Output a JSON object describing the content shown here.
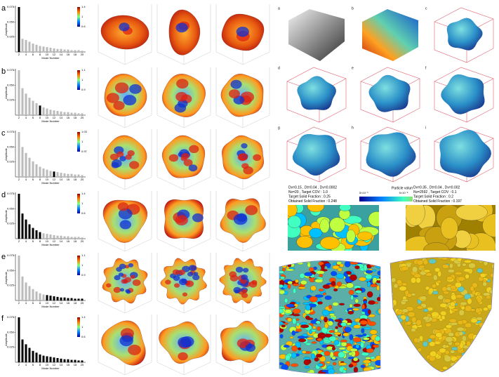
{
  "panels": [
    {
      "label": "a",
      "y_axis_label": "Amplitude",
      "x_axis_label": "Mode Number",
      "modes": [
        2,
        3,
        4,
        5,
        6,
        7,
        8,
        9,
        10,
        11,
        12,
        13,
        14,
        15,
        16,
        17,
        18,
        19,
        20
      ],
      "amplitudes": [
        0.075,
        0.022,
        0.02,
        0.017,
        0.014,
        0.012,
        0.01,
        0.009,
        0.008,
        0.007,
        0.006,
        0.005,
        0.005,
        0.004,
        0.004,
        0.003,
        0.003,
        0.003,
        0.002
      ],
      "black_modes": [
        2
      ],
      "xlim": [
        1,
        21
      ],
      "ylim": [
        0,
        0.075
      ],
      "yticks": [
        {
          "value": 0.025,
          "label": "0.025"
        },
        {
          "value": 0.05,
          "label": "0.050"
        },
        0.075
      ],
      "xticks": [
        2,
        4,
        6,
        8,
        10,
        12,
        14,
        16,
        18,
        20
      ],
      "colorbar_ticks": [
        1.4,
        1,
        0.6
      ]
    },
    {
      "label": "b",
      "y_axis_label": "Amplitude",
      "x_axis_label": "Mode Number",
      "modes": [
        2,
        3,
        4,
        5,
        6,
        7,
        8,
        9,
        10,
        11,
        12,
        13,
        14,
        15,
        16,
        17,
        18,
        19,
        20
      ],
      "amplitudes": [
        0.075,
        0.045,
        0.036,
        0.029,
        0.024,
        0.02,
        0.016,
        0.013,
        0.011,
        0.009,
        0.008,
        0.007,
        0.006,
        0.005,
        0.005,
        0.004,
        0.004,
        0.003,
        0.003
      ],
      "black_modes": [
        8
      ],
      "xlim": [
        1,
        21
      ],
      "ylim": [
        0,
        0.075
      ],
      "yticks": [
        {
          "value": 0.025,
          "label": "0.025"
        },
        {
          "value": 0.05,
          "label": "0.050"
        },
        0.075
      ],
      "xticks": [
        2,
        4,
        6,
        8,
        10,
        12,
        14,
        16,
        18,
        20
      ],
      "colorbar_ticks": [
        1.1,
        1,
        0.9
      ]
    },
    {
      "label": "c",
      "y_axis_label": "Amplitude",
      "x_axis_label": "Mode Number",
      "modes": [
        2,
        3,
        4,
        5,
        6,
        7,
        8,
        9,
        10,
        11,
        12,
        13,
        14,
        15,
        16,
        17,
        18,
        19,
        20
      ],
      "amplitudes": [
        0.075,
        0.05,
        0.04,
        0.032,
        0.026,
        0.021,
        0.017,
        0.014,
        0.012,
        0.01,
        0.009,
        0.008,
        0.007,
        0.006,
        0.005,
        0.005,
        0.004,
        0.004,
        0.003
      ],
      "black_modes": [
        12
      ],
      "xlim": [
        1,
        21
      ],
      "ylim": [
        0,
        0.075
      ],
      "yticks": [
        {
          "value": 0.025,
          "label": "0.025"
        },
        {
          "value": 0.05,
          "label": "0.050"
        },
        0.075
      ],
      "xticks": [
        2,
        4,
        6,
        8,
        10,
        12,
        14,
        16,
        18,
        20
      ],
      "colorbar_ticks": [
        1.03,
        1,
        0.97
      ]
    },
    {
      "label": "d",
      "y_axis_label": "Amplitude",
      "x_axis_label": "Mode Number",
      "modes": [
        2,
        3,
        4,
        5,
        6,
        7,
        8,
        9,
        10,
        11,
        12,
        13,
        14,
        15,
        16,
        17,
        18,
        19,
        20
      ],
      "amplitudes": [
        0.075,
        0.042,
        0.032,
        0.024,
        0.018,
        0.014,
        0.011,
        0.009,
        0.008,
        0.007,
        0.006,
        0.005,
        0.005,
        0.004,
        0.004,
        0.003,
        0.003,
        0.003,
        0.002
      ],
      "black_modes": [
        2,
        3,
        4,
        5,
        6,
        7,
        8
      ],
      "xlim": [
        1,
        21
      ],
      "ylim": [
        0,
        0.075
      ],
      "yticks": [
        {
          "value": 0.025,
          "label": "0.025"
        },
        {
          "value": 0.05,
          "label": "0.050"
        },
        0.075
      ],
      "xticks": [
        2,
        4,
        6,
        8,
        10,
        12,
        14,
        16,
        18,
        20
      ],
      "colorbar_ticks": [
        1.4,
        1,
        0.6
      ]
    },
    {
      "label": "e",
      "y_axis_label": "Amplitude",
      "x_axis_label": "Mode Number",
      "modes": [
        2,
        3,
        4,
        5,
        6,
        7,
        8,
        9,
        10,
        11,
        12,
        13,
        14,
        15,
        16,
        17,
        18,
        19,
        20
      ],
      "amplitudes": [
        0.075,
        0.04,
        0.03,
        0.024,
        0.019,
        0.015,
        0.012,
        0.01,
        0.009,
        0.008,
        0.007,
        0.006,
        0.005,
        0.005,
        0.004,
        0.004,
        0.003,
        0.003,
        0.003
      ],
      "black_modes": [
        10,
        11,
        12,
        13,
        14,
        15,
        16,
        17,
        18,
        19,
        20
      ],
      "xlim": [
        1,
        21
      ],
      "ylim": [
        0,
        0.075
      ],
      "yticks": [
        {
          "value": 0.025,
          "label": "0.025"
        },
        {
          "value": 0.05,
          "label": "0.050"
        },
        0.075
      ],
      "xticks": [
        2,
        4,
        6,
        8,
        10,
        12,
        14,
        16,
        18,
        20
      ],
      "colorbar_ticks": [
        1.1,
        1,
        0.9
      ]
    },
    {
      "label": "f",
      "y_axis_label": "Amplitude",
      "x_axis_label": "Mode Number",
      "modes": [
        2,
        3,
        4,
        5,
        6,
        7,
        8,
        9,
        10,
        11,
        12,
        13,
        14,
        15,
        16,
        17,
        18,
        19,
        20
      ],
      "amplitudes": [
        0.075,
        0.038,
        0.03,
        0.024,
        0.019,
        0.016,
        0.013,
        0.011,
        0.01,
        0.009,
        0.008,
        0.007,
        0.006,
        0.005,
        0.005,
        0.004,
        0.004,
        0.003,
        0.003
      ],
      "black_modes": [
        2,
        3,
        4,
        5,
        6,
        7,
        8,
        9,
        10,
        11,
        12,
        13,
        14,
        15,
        16,
        17,
        18,
        19,
        20
      ],
      "xlim": [
        1,
        21
      ],
      "ylim": [
        0,
        0.075
      ],
      "yticks": [
        {
          "value": 0.025,
          "label": "0.025"
        },
        {
          "value": 0.05,
          "label": "0.050"
        },
        0.075
      ],
      "xticks": [
        2,
        4,
        6,
        8,
        10,
        12,
        14,
        16,
        18,
        20
      ],
      "colorbar_ticks": [
        1.4,
        1,
        0.6
      ]
    }
  ],
  "right_panels": {
    "labels": [
      "a",
      "b",
      "c",
      "d",
      "e",
      "f",
      "g",
      "h",
      "i"
    ]
  },
  "particle_volume": {
    "title": "Particle volume",
    "ticks": [
      "5×10⁻⁶",
      "5×10⁻⁵",
      "5×10⁻⁴"
    ]
  },
  "simulations": [
    {
      "lines": [
        "Dv=0.15 , Dt=0.04 , Dv=0.0002",
        "Nv=20 , Target COV : 1.0",
        "Target Solid Fraction : 0.25",
        "Obtained Solid Fraction : 0.248"
      ]
    },
    {
      "lines": [
        "Dv=0.35 , Dt=0.04 , Dv=0.002",
        "Nv=2592 , Target COV : 0.1",
        "Target Solid Fraction : 0.2",
        "Obtained Solid Fraction : 0.197"
      ]
    }
  ]
}
